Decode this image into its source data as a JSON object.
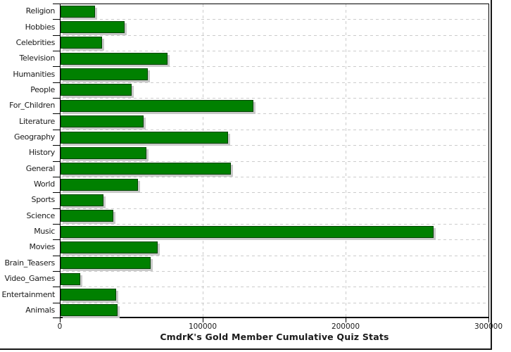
{
  "chart_data": {
    "type": "bar",
    "orientation": "horizontal",
    "title": "CmdrK's Gold Member Cumulative Quiz Stats",
    "categories": [
      "Religion",
      "Hobbies",
      "Celebrities",
      "Television",
      "Humanities",
      "People",
      "For_Children",
      "Literature",
      "Geography",
      "History",
      "General",
      "World",
      "Sports",
      "Science",
      "Music",
      "Movies",
      "Brain_Teasers",
      "Video_Games",
      "Entertainment",
      "Animals"
    ],
    "values": [
      24000,
      45000,
      29000,
      75000,
      61000,
      50000,
      135000,
      58000,
      117000,
      60000,
      119000,
      54000,
      30000,
      37000,
      261000,
      68000,
      63000,
      14000,
      39000,
      40000
    ],
    "xlabel": "",
    "ylabel": "",
    "x_axis": {
      "min": 0,
      "max": 300500,
      "tick_values": [
        0,
        100000,
        200000,
        300000
      ],
      "tick_labels": [
        "0",
        "100000",
        "200000",
        "300000"
      ],
      "grid_values": [
        100000,
        200000
      ]
    },
    "grid": "dashed",
    "legend": "none",
    "colors": {
      "bar_fill": "#008000",
      "bar_border": "#004400",
      "bar_shadow": "#c9c9c9",
      "grid_line": "#cccccc",
      "axis_line": "#000000",
      "text": "#1a1a1a",
      "frame": "#161616",
      "background": "#ffffff"
    }
  }
}
